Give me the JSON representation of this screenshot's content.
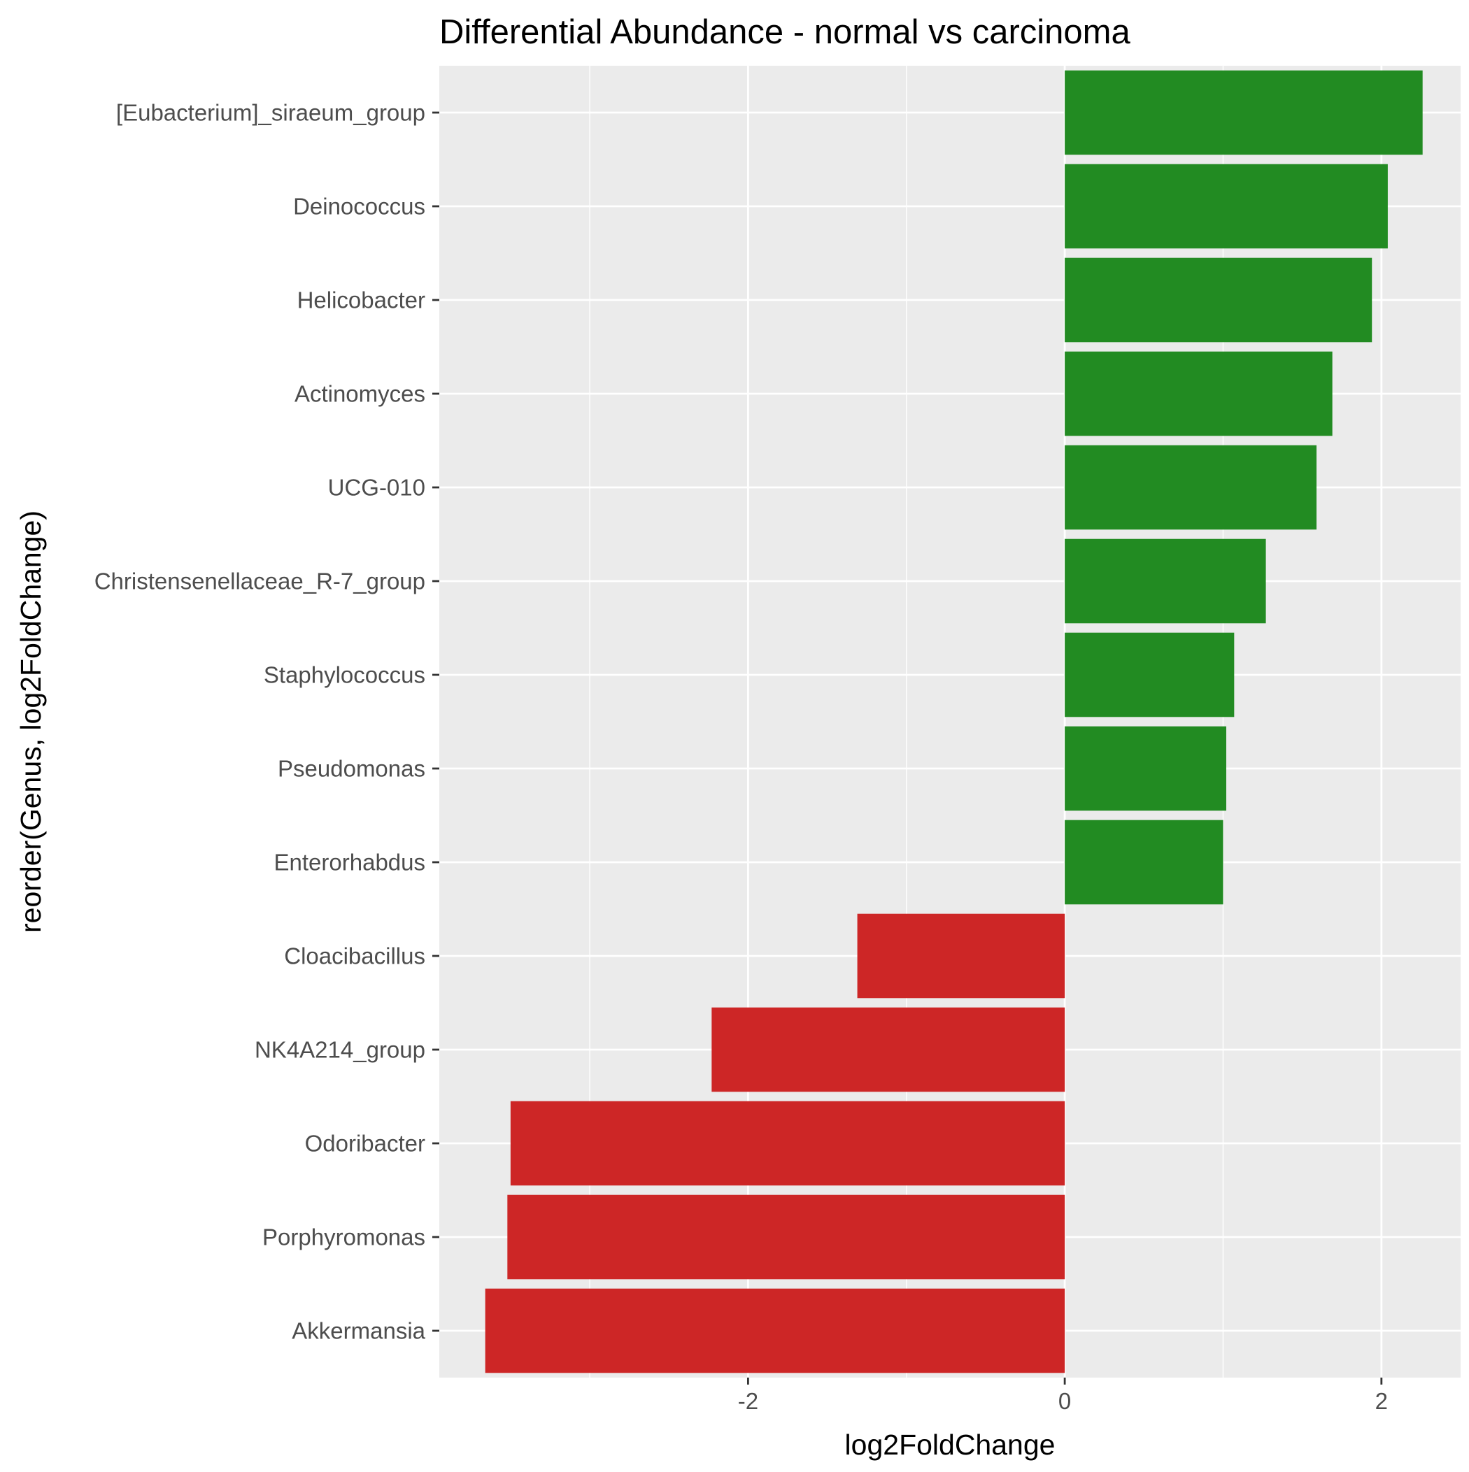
{
  "chart_data": {
    "type": "bar",
    "orientation": "horizontal",
    "title": "Differential Abundance - normal vs carcinoma",
    "xlabel": "log2FoldChange",
    "ylabel": "reorder(Genus, log2FoldChange)",
    "xlim": [
      -3.95,
      2.5
    ],
    "x_ticks": [
      -2,
      0,
      2
    ],
    "x_tick_labels": [
      "-2",
      "0",
      "2"
    ],
    "grid": true,
    "legend": "none",
    "colors": {
      "positive": "#228B22",
      "negative": "#CD2626",
      "panel": "#EBEBEB",
      "grid": "#FFFFFF"
    },
    "categories": [
      "[Eubacterium]_siraeum_group",
      "Deinococcus",
      "Helicobacter",
      "Actinomyces",
      "UCG-010",
      "Christensenellaceae_R-7_group",
      "Staphylococcus",
      "Pseudomonas",
      "Enterorhabdus",
      "Cloacibacillus",
      "NK4A214_group",
      "Odoribacter",
      "Porphyromonas",
      "Akkermansia"
    ],
    "values": [
      2.26,
      2.04,
      1.94,
      1.69,
      1.59,
      1.27,
      1.07,
      1.02,
      1.0,
      -1.31,
      -2.23,
      -3.5,
      -3.52,
      -3.66
    ]
  }
}
